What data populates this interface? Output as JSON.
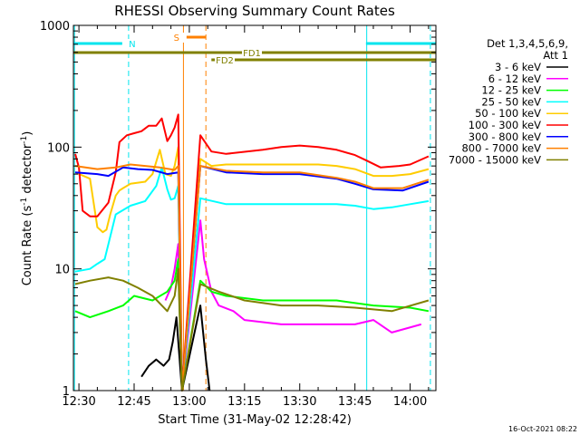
{
  "chart_data": {
    "type": "line",
    "title": "RHESSI Observing Summary Count Rates",
    "xlabel": "Start Time (31-May-02 12:28:42)",
    "ylabel_main": "Count Rate (s",
    "ylabel_sup1": "-1",
    "ylabel_mid": " detector",
    "ylabel_sup2": "-1",
    "ylabel_end": ")",
    "x_ticks": [
      {
        "label": "12:30",
        "t": 0
      },
      {
        "label": "12:45",
        "t": 15
      },
      {
        "label": "13:00",
        "t": 30
      },
      {
        "label": "13:15",
        "t": 45
      },
      {
        "label": "13:30",
        "t": 60
      },
      {
        "label": "13:45",
        "t": 75
      },
      {
        "label": "14:00",
        "t": 90
      }
    ],
    "x_minutes_start": -1.5,
    "x_minutes_end": 97,
    "y_ticks": [
      {
        "label": "1",
        "v": 1
      },
      {
        "label": "10",
        "v": 10
      },
      {
        "label": "100",
        "v": 100
      },
      {
        "label": "1000",
        "v": 1000
      }
    ],
    "ylim": [
      1,
      1000
    ],
    "y_log": true,
    "legend_title_1": "Det 1,3,4,5,6,9,",
    "legend_title_2": "Att 1",
    "legend_placement": "right",
    "series": [
      {
        "name": "3 - 6 keV",
        "color": "#000000",
        "points": [
          [
            17,
            1.3
          ],
          [
            19,
            1.6
          ],
          [
            21,
            1.8
          ],
          [
            23,
            1.6
          ],
          [
            24.5,
            1.8
          ],
          [
            25.5,
            2.5
          ],
          [
            26.5,
            4.0
          ],
          [
            28,
            1.0
          ],
          [
            33,
            5.0
          ],
          [
            34.5,
            1.8
          ],
          [
            35.5,
            1.0
          ]
        ]
      },
      {
        "name": "6 - 12 keV",
        "color": "#ff00ff",
        "points": [
          [
            23.5,
            5.5
          ],
          [
            25,
            7.0
          ],
          [
            26,
            10
          ],
          [
            27,
            16
          ],
          [
            28,
            1.0
          ],
          [
            33,
            25
          ],
          [
            34,
            12
          ],
          [
            36,
            6.5
          ],
          [
            38,
            5.0
          ],
          [
            42,
            4.5
          ],
          [
            45,
            3.8
          ],
          [
            55,
            3.5
          ],
          [
            65,
            3.5
          ],
          [
            75,
            3.5
          ],
          [
            80,
            3.8
          ],
          [
            85,
            3.0
          ],
          [
            93,
            3.5
          ]
        ]
      },
      {
        "name": "12 - 25 keV",
        "color": "#00ff00",
        "points": [
          [
            -1,
            4.5
          ],
          [
            3,
            4.0
          ],
          [
            8,
            4.5
          ],
          [
            12,
            5.0
          ],
          [
            15,
            6.0
          ],
          [
            20,
            5.5
          ],
          [
            24,
            6.5
          ],
          [
            26,
            8.0
          ],
          [
            27,
            12
          ],
          [
            28,
            1.0
          ],
          [
            33,
            8.0
          ],
          [
            36,
            6.5
          ],
          [
            40,
            6.0
          ],
          [
            50,
            5.5
          ],
          [
            60,
            5.5
          ],
          [
            70,
            5.5
          ],
          [
            80,
            5.0
          ],
          [
            90,
            4.8
          ],
          [
            95,
            4.5
          ]
        ]
      },
      {
        "name": "25 - 50 keV",
        "color": "#00ffff",
        "points": [
          [
            -1,
            9.5
          ],
          [
            3,
            10
          ],
          [
            5,
            11
          ],
          [
            7,
            12
          ],
          [
            10,
            28
          ],
          [
            14,
            33
          ],
          [
            18,
            36
          ],
          [
            21,
            48
          ],
          [
            22.5,
            68
          ],
          [
            24,
            45
          ],
          [
            25,
            37
          ],
          [
            26,
            38
          ],
          [
            27,
            48
          ],
          [
            28,
            1.0
          ],
          [
            33,
            38
          ],
          [
            40,
            34
          ],
          [
            50,
            34
          ],
          [
            60,
            34
          ],
          [
            70,
            34
          ],
          [
            75,
            33
          ],
          [
            80,
            31
          ],
          [
            85,
            32
          ],
          [
            90,
            34
          ],
          [
            95,
            36
          ]
        ]
      },
      {
        "name": "50 - 100 keV",
        "color": "#ffcc00",
        "points": [
          [
            -1,
            62
          ],
          [
            3,
            55
          ],
          [
            5,
            22
          ],
          [
            6.5,
            20
          ],
          [
            7.5,
            21
          ],
          [
            8.5,
            28
          ],
          [
            10,
            40
          ],
          [
            11,
            44
          ],
          [
            12,
            46
          ],
          [
            14,
            50
          ],
          [
            18,
            52
          ],
          [
            20,
            60
          ],
          [
            22,
            95
          ],
          [
            23.5,
            60
          ],
          [
            25,
            58
          ],
          [
            26,
            70
          ],
          [
            27,
            100
          ],
          [
            28,
            1.0
          ],
          [
            33,
            80
          ],
          [
            36,
            70
          ],
          [
            40,
            72
          ],
          [
            50,
            72
          ],
          [
            60,
            72
          ],
          [
            65,
            72
          ],
          [
            70,
            70
          ],
          [
            75,
            66
          ],
          [
            80,
            58
          ],
          [
            85,
            58
          ],
          [
            90,
            60
          ],
          [
            95,
            66
          ]
        ]
      },
      {
        "name": "100 - 300 keV",
        "color": "#ff0000",
        "points": [
          [
            -1,
            88
          ],
          [
            0,
            68
          ],
          [
            1,
            30
          ],
          [
            3,
            27
          ],
          [
            5,
            27
          ],
          [
            8,
            35
          ],
          [
            10,
            62
          ],
          [
            11,
            110
          ],
          [
            13,
            125
          ],
          [
            15,
            130
          ],
          [
            17,
            135
          ],
          [
            19,
            150
          ],
          [
            21,
            150
          ],
          [
            22.5,
            172
          ],
          [
            24,
            112
          ],
          [
            25,
            125
          ],
          [
            26,
            145
          ],
          [
            27,
            185
          ],
          [
            28,
            1.0
          ],
          [
            33,
            125
          ],
          [
            36,
            92
          ],
          [
            40,
            88
          ],
          [
            50,
            95
          ],
          [
            55,
            100
          ],
          [
            60,
            103
          ],
          [
            65,
            100
          ],
          [
            70,
            95
          ],
          [
            75,
            86
          ],
          [
            78,
            78
          ],
          [
            82,
            68
          ],
          [
            87,
            70
          ],
          [
            90,
            72
          ],
          [
            95,
            84
          ]
        ]
      },
      {
        "name": "300 - 800 keV",
        "color": "#0000ff",
        "points": [
          [
            -1,
            62
          ],
          [
            5,
            60
          ],
          [
            8,
            58
          ],
          [
            12,
            68
          ],
          [
            16,
            66
          ],
          [
            20,
            65
          ],
          [
            24,
            60
          ],
          [
            27,
            62
          ],
          [
            28,
            1.0
          ],
          [
            33,
            70
          ],
          [
            40,
            62
          ],
          [
            50,
            60
          ],
          [
            60,
            60
          ],
          [
            70,
            55
          ],
          [
            75,
            50
          ],
          [
            80,
            45
          ],
          [
            88,
            44
          ],
          [
            95,
            52
          ]
        ]
      },
      {
        "name": "800 - 7000 keV",
        "color": "#ff8000",
        "points": [
          [
            -1,
            70
          ],
          [
            5,
            66
          ],
          [
            10,
            68
          ],
          [
            14,
            72
          ],
          [
            18,
            70
          ],
          [
            22,
            68
          ],
          [
            26,
            65
          ],
          [
            27,
            70
          ],
          [
            28,
            1.0
          ],
          [
            33,
            70
          ],
          [
            40,
            64
          ],
          [
            50,
            62
          ],
          [
            60,
            62
          ],
          [
            70,
            56
          ],
          [
            75,
            52
          ],
          [
            80,
            46
          ],
          [
            88,
            46
          ],
          [
            95,
            54
          ]
        ]
      },
      {
        "name": "7000 - 15000 keV",
        "color": "#808000",
        "points": [
          [
            -1,
            7.5
          ],
          [
            3,
            8.0
          ],
          [
            8,
            8.5
          ],
          [
            12,
            8.0
          ],
          [
            16,
            7.0
          ],
          [
            20,
            6.0
          ],
          [
            24,
            4.5
          ],
          [
            26,
            6.0
          ],
          [
            27,
            10
          ],
          [
            28,
            1.0
          ],
          [
            33,
            7.5
          ],
          [
            38,
            6.5
          ],
          [
            45,
            5.5
          ],
          [
            55,
            5.0
          ],
          [
            65,
            5.0
          ],
          [
            75,
            4.8
          ],
          [
            85,
            4.5
          ],
          [
            95,
            5.5
          ]
        ]
      }
    ],
    "flag_lines": [
      {
        "label": "N",
        "color": "#00e5ee",
        "y_level": 0,
        "segments": [
          [
            -1.5,
            12.5
          ],
          [
            78,
            97
          ]
        ]
      },
      {
        "label": "S",
        "color": "#ff8000",
        "y_level": 1,
        "segments": [
          [
            29,
            34.5
          ]
        ]
      },
      {
        "label": "FD1",
        "color": "#808000",
        "y_level": 2,
        "segments": [
          [
            -1.5,
            97
          ]
        ]
      },
      {
        "label": "FD2",
        "color": "#808000",
        "y_level": 3,
        "segments": [
          [
            36,
            97
          ]
        ]
      }
    ],
    "vlines": [
      {
        "t": -1.2,
        "color": "#00e5ee",
        "dashed": false
      },
      {
        "t": 13.5,
        "color": "#00e5ee",
        "dashed": true
      },
      {
        "t": 28.4,
        "color": "#ff8000",
        "dashed": false
      },
      {
        "t": 34.5,
        "color": "#ff8000",
        "dashed": true
      },
      {
        "t": 78.2,
        "color": "#00e5ee",
        "dashed": false
      },
      {
        "t": 95.5,
        "color": "#00e5ee",
        "dashed": true
      }
    ],
    "timestamp": "16-Oct-2021 08:22"
  }
}
